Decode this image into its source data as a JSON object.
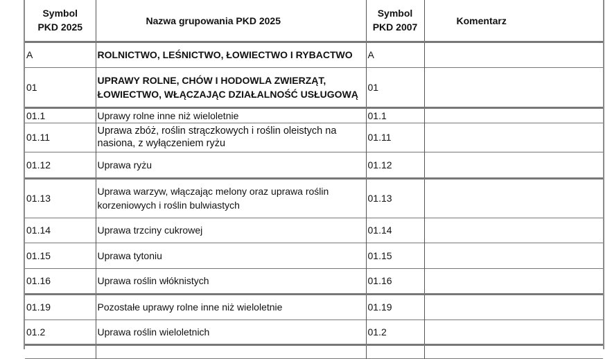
{
  "header": {
    "col1": "Symbol PKD 2025",
    "col2": "Nazwa grupowania PKD 2025",
    "col3": "Symbol PKD 2007",
    "col4": "Komentarz"
  },
  "rows": [
    {
      "code2025": "A",
      "name": "ROLNICTWO, LEŚNICTWO, ŁOWIECTWO I RYBACTWO",
      "code2007": "A",
      "comment": ""
    },
    {
      "code2025": "01",
      "name": "UPRAWY ROLNE, CHÓW I HODOWLA ZWIERZĄT, ŁOWIECTWO, WŁĄCZAJĄC DZIAŁALNOŚĆ USŁUGOWĄ",
      "code2007": "01",
      "comment": ""
    },
    {
      "code2025": "01.1",
      "name": "Uprawy rolne inne niż wieloletnie",
      "code2007": "01.1",
      "comment": ""
    },
    {
      "code2025": "01.11",
      "name": "Uprawa zbóż, roślin strączkowych i roślin oleistych na nasiona, z wyłączeniem ryżu",
      "code2007": "01.11",
      "comment": ""
    },
    {
      "code2025": "01.12",
      "name": "Uprawa ryżu",
      "code2007": "01.12",
      "comment": ""
    },
    {
      "code2025": "01.13",
      "name": "Uprawa warzyw, włączając melony oraz uprawa roślin korzeniowych i roślin bulwiastych",
      "code2007": "01.13",
      "comment": ""
    },
    {
      "code2025": "01.14",
      "name": "Uprawa trzciny cukrowej",
      "code2007": "01.14",
      "comment": ""
    },
    {
      "code2025": "01.15",
      "name": "Uprawa tytoniu",
      "code2007": "01.15",
      "comment": ""
    },
    {
      "code2025": "01.16",
      "name": "Uprawa roślin włóknistych",
      "code2007": "01.16",
      "comment": ""
    },
    {
      "code2025": "01.19",
      "name": "Pozostałe uprawy rolne inne niż wieloletnie",
      "code2007": "01.19",
      "comment": ""
    },
    {
      "code2025": "01.2",
      "name": "Uprawa roślin wieloletnich",
      "code2007": "01.2",
      "comment": ""
    }
  ]
}
